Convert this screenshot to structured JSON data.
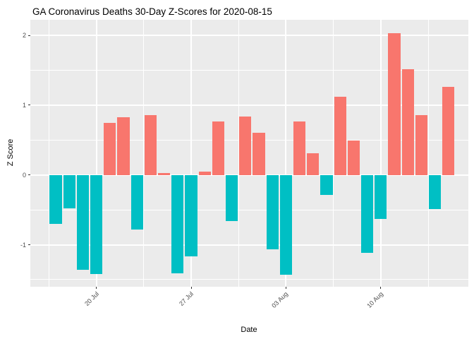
{
  "chart_data": {
    "type": "bar",
    "title": "GA Coronavirus Deaths 30-Day Z-Scores for 2020-08-15",
    "xlabel": "Date",
    "ylabel": "Z Score",
    "x": [
      "2020-07-17",
      "2020-07-18",
      "2020-07-19",
      "2020-07-20",
      "2020-07-21",
      "2020-07-22",
      "2020-07-23",
      "2020-07-24",
      "2020-07-25",
      "2020-07-26",
      "2020-07-27",
      "2020-07-28",
      "2020-07-29",
      "2020-07-30",
      "2020-07-31",
      "2020-08-01",
      "2020-08-02",
      "2020-08-03",
      "2020-08-04",
      "2020-08-05",
      "2020-08-06",
      "2020-08-07",
      "2020-08-08",
      "2020-08-09",
      "2020-08-10",
      "2020-08-11",
      "2020-08-12",
      "2020-08-13",
      "2020-08-14",
      "2020-08-15"
    ],
    "values": [
      -0.7,
      -0.48,
      -1.36,
      -1.42,
      0.75,
      0.83,
      -0.78,
      0.86,
      0.03,
      -1.41,
      -1.17,
      0.05,
      0.77,
      -0.66,
      0.84,
      0.6,
      -1.07,
      -1.43,
      0.77,
      0.31,
      -0.29,
      1.12,
      0.49,
      -1.12,
      -0.63,
      2.03,
      1.52,
      0.86,
      -0.49,
      1.26
    ],
    "bar_colors": {
      "positive": "#F8766D",
      "negative": "#00BFC4"
    },
    "x_ticks": [
      {
        "index": 3,
        "label": "20 Jul"
      },
      {
        "index": 10,
        "label": "27 Jul"
      },
      {
        "index": 17,
        "label": "03 Aug"
      },
      {
        "index": 24,
        "label": "10 Aug"
      }
    ],
    "x_minor_indices": [
      -0.5,
      6.5,
      13.5,
      20.5,
      27.5
    ],
    "y_ticks": [
      {
        "value": 2,
        "label": "2"
      },
      {
        "value": 1,
        "label": "1"
      },
      {
        "value": 0,
        "label": "0"
      },
      {
        "value": -1,
        "label": "-1"
      }
    ],
    "y_minor": [
      1.5,
      0.5,
      -0.5,
      -1.5
    ],
    "ylim": [
      -1.6,
      2.22
    ],
    "grid": "on",
    "legend": "none",
    "colors": {
      "background": "#FFFFFF",
      "panel_bg": "#EBEBEB",
      "grid": "#FFFFFF",
      "tick_text": "#4D4D4D",
      "tick_mark": "#333333",
      "axis_title": "#000000"
    }
  }
}
